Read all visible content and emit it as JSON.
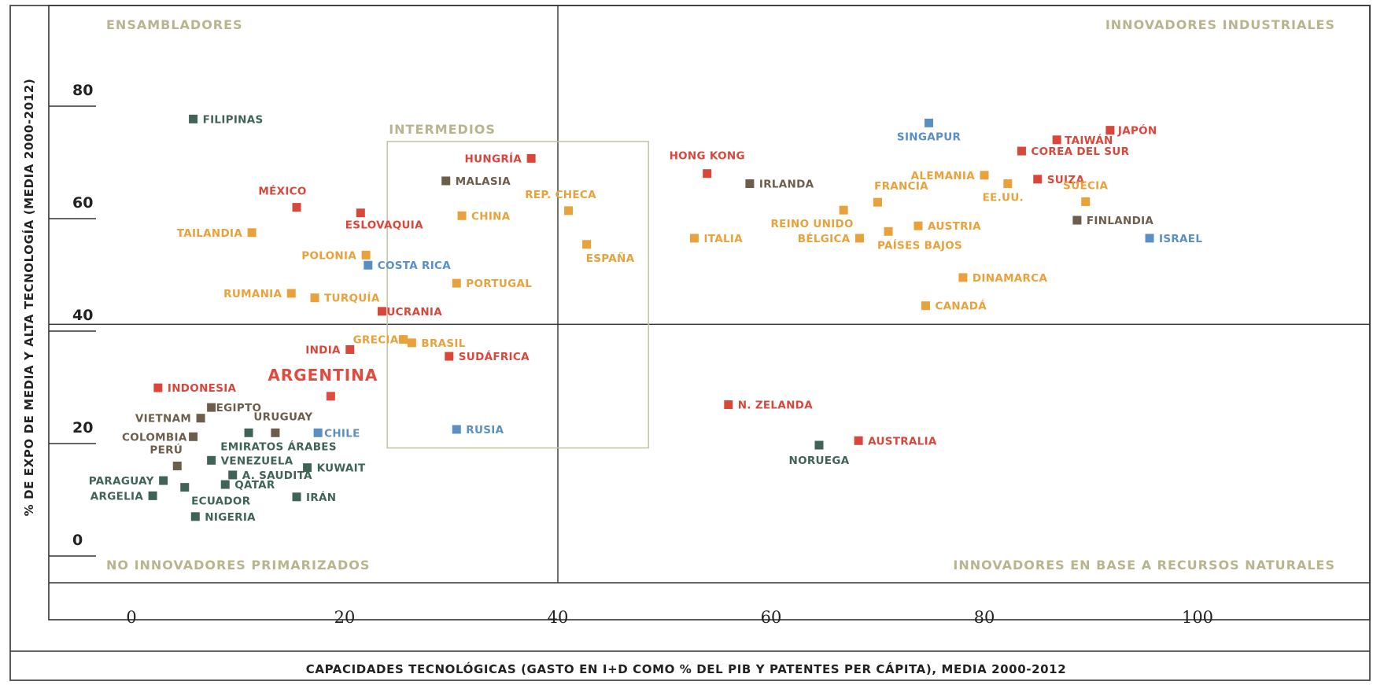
{
  "chart_data": {
    "type": "scatter",
    "xlabel": "CAPACIDADES TECNOLÓGICAS (GASTO EN I+D COMO % DEL PIB Y PATENTES PER CÁPITA), MEDIA 2000-2012",
    "ylabel": "% DE EXPO DE MEDIA Y ALTA TECNOLOGÍA (MEDIA 2000-2012)",
    "xlim": [
      -8,
      102
    ],
    "ylim": [
      -3,
      92
    ],
    "x_ticks": [
      "0",
      "20",
      "40",
      "60",
      "80",
      "100"
    ],
    "y_ticks": [
      "0",
      "20",
      "40",
      "60",
      "80"
    ],
    "quadrant_lines": {
      "x": 40,
      "y": 38
    },
    "quadrants": {
      "top_left": "ENSAMBLADORES",
      "top_right": "INNOVADORES INDUSTRIALES",
      "bottom_left": "NO INNOVADORES PRIMARIZADOS",
      "bottom_right": "INNOVADORES EN BASE A RECURSOS NATURALES"
    },
    "intermediate_box": {
      "label": "INTERMEDIOS",
      "x": [
        24,
        48.5
      ],
      "y": [
        16,
        70.5
      ]
    },
    "colors": {
      "red": "#d9473b",
      "orange": "#e9a23b",
      "blue": "#5a8fc4",
      "teal": "#3f6456",
      "brown": "#6d5d4b",
      "argentina": "#e24a3f"
    },
    "points": [
      {
        "name": "FILIPINAS",
        "x": 5.8,
        "y": 74.5,
        "color": "teal"
      },
      {
        "name": "MÉXICO",
        "x": 15.5,
        "y": 58.8,
        "color": "red"
      },
      {
        "name": "ESLOVAQUIA",
        "x": 21.5,
        "y": 57.8,
        "color": "red"
      },
      {
        "name": "TAILANDIA",
        "x": 11.3,
        "y": 54.3,
        "color": "orange"
      },
      {
        "name": "POLONIA",
        "x": 22,
        "y": 50.3,
        "color": "orange"
      },
      {
        "name": "COSTA RICA",
        "x": 22.2,
        "y": 48.5,
        "color": "blue"
      },
      {
        "name": "RUMANIA",
        "x": 15,
        "y": 43.5,
        "color": "orange"
      },
      {
        "name": "TURQUÍA",
        "x": 17.2,
        "y": 42.7,
        "color": "orange"
      },
      {
        "name": "UCRANIA",
        "x": 23.5,
        "y": 40.3,
        "color": "red"
      },
      {
        "name": "HUNGRÍA",
        "x": 37.5,
        "y": 67.5,
        "color": "red"
      },
      {
        "name": "MALASIA",
        "x": 29.5,
        "y": 63.5,
        "color": "brown"
      },
      {
        "name": "CHINA",
        "x": 31,
        "y": 57.3,
        "color": "orange"
      },
      {
        "name": "REP. CHECA",
        "x": 41,
        "y": 58.2,
        "color": "orange"
      },
      {
        "name": "ESPAÑA",
        "x": 42.7,
        "y": 52.2,
        "color": "orange"
      },
      {
        "name": "PORTUGAL",
        "x": 30.5,
        "y": 45.3,
        "color": "orange"
      },
      {
        "name": "GRECIA",
        "x": 25.5,
        "y": 35.3,
        "color": "orange"
      },
      {
        "name": "BRASIL",
        "x": 26.3,
        "y": 34.7,
        "color": "orange"
      },
      {
        "name": "INDIA",
        "x": 20.5,
        "y": 33.5,
        "color": "red"
      },
      {
        "name": "SUDÁFRICA",
        "x": 29.8,
        "y": 32.3,
        "color": "red"
      },
      {
        "name": "ARGENTINA",
        "x": 18.7,
        "y": 25.2,
        "color": "argentina"
      },
      {
        "name": "RUSIA",
        "x": 30.5,
        "y": 19.3,
        "color": "blue"
      },
      {
        "name": "INDONESIA",
        "x": 2.5,
        "y": 26.7,
        "color": "red"
      },
      {
        "name": "EGIPTO",
        "x": 7.5,
        "y": 23.2,
        "color": "brown"
      },
      {
        "name": "VIETNAM",
        "x": 6.5,
        "y": 21.3,
        "color": "brown"
      },
      {
        "name": "URUGUAY",
        "x": 13.5,
        "y": 18.7,
        "color": "brown"
      },
      {
        "name": "CHILE",
        "x": 17.5,
        "y": 18.7,
        "color": "blue"
      },
      {
        "name": "EMIRATOS ÁRABES",
        "x": 11,
        "y": 18.7,
        "color": "teal"
      },
      {
        "name": "COLOMBIA",
        "x": 5.8,
        "y": 18,
        "color": "brown"
      },
      {
        "name": "PERÚ",
        "x": 4.3,
        "y": 12.8,
        "color": "brown"
      },
      {
        "name": "VENEZUELA",
        "x": 7.5,
        "y": 13.8,
        "color": "teal"
      },
      {
        "name": "KUWAIT",
        "x": 16.5,
        "y": 12.5,
        "color": "teal"
      },
      {
        "name": "A. SAUDITA",
        "x": 9.5,
        "y": 11.2,
        "color": "teal"
      },
      {
        "name": "QATAR",
        "x": 8.8,
        "y": 9.5,
        "color": "teal"
      },
      {
        "name": "PARAGUAY",
        "x": 3,
        "y": 10.2,
        "color": "teal"
      },
      {
        "name": "ARGELIA",
        "x": 2,
        "y": 7.5,
        "color": "teal"
      },
      {
        "name": "ECUADOR",
        "x": 5,
        "y": 9,
        "color": "teal"
      },
      {
        "name": "IRÁN",
        "x": 15.5,
        "y": 7.3,
        "color": "teal"
      },
      {
        "name": "NIGERIA",
        "x": 6,
        "y": 3.8,
        "color": "teal"
      },
      {
        "name": "HONG KONG",
        "x": 54,
        "y": 64.8,
        "color": "red"
      },
      {
        "name": "IRLANDA",
        "x": 58,
        "y": 63,
        "color": "brown"
      },
      {
        "name": "SINGAPUR",
        "x": 74.8,
        "y": 73.8,
        "color": "blue"
      },
      {
        "name": "JAPÓN",
        "x": 91.8,
        "y": 72.5,
        "color": "red"
      },
      {
        "name": "TAIWÁN",
        "x": 86.8,
        "y": 70.8,
        "color": "red"
      },
      {
        "name": "COREA DEL SUR",
        "x": 83.5,
        "y": 68.8,
        "color": "red"
      },
      {
        "name": "ALEMANIA",
        "x": 80,
        "y": 64.5,
        "color": "orange"
      },
      {
        "name": "EE.UU.",
        "x": 82.2,
        "y": 63,
        "color": "orange"
      },
      {
        "name": "SUIZA",
        "x": 85,
        "y": 63.8,
        "color": "red"
      },
      {
        "name": "SUECIA",
        "x": 89.5,
        "y": 59.8,
        "color": "orange"
      },
      {
        "name": "FRANCIA",
        "x": 70,
        "y": 59.7,
        "color": "orange"
      },
      {
        "name": "REINO UNIDO",
        "x": 66.8,
        "y": 58.3,
        "color": "orange"
      },
      {
        "name": "FINLANDIA",
        "x": 88.7,
        "y": 56.5,
        "color": "brown"
      },
      {
        "name": "AUSTRIA",
        "x": 73.8,
        "y": 55.5,
        "color": "orange"
      },
      {
        "name": "PAÍSES BAJOS",
        "x": 71,
        "y": 54.5,
        "color": "orange"
      },
      {
        "name": "BÉLGICA",
        "x": 68.3,
        "y": 53.3,
        "color": "orange"
      },
      {
        "name": "ITALIA",
        "x": 52.8,
        "y": 53.3,
        "color": "orange"
      },
      {
        "name": "ISRAEL",
        "x": 95.5,
        "y": 53.3,
        "color": "blue"
      },
      {
        "name": "DINAMARCA",
        "x": 78,
        "y": 46.3,
        "color": "orange"
      },
      {
        "name": "CANADÁ",
        "x": 74.5,
        "y": 41.3,
        "color": "orange"
      },
      {
        "name": "N. ZELANDA",
        "x": 56,
        "y": 23.7,
        "color": "red"
      },
      {
        "name": "AUSTRALIA",
        "x": 68.2,
        "y": 17.3,
        "color": "red"
      },
      {
        "name": "NORUEGA",
        "x": 64.5,
        "y": 16.5,
        "color": "teal"
      }
    ]
  }
}
